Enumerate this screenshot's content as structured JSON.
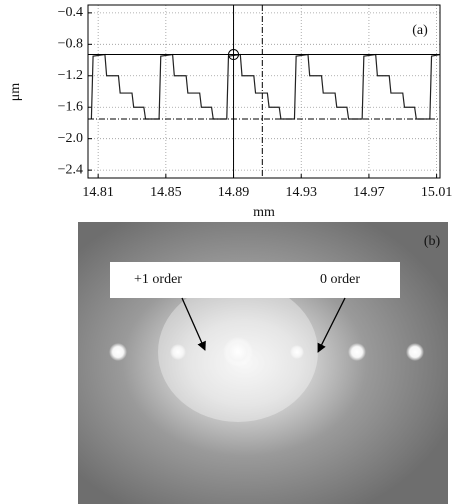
{
  "chart_data": {
    "type": "line",
    "panel_label": "(a)",
    "x_label": "mm",
    "y_label": "μm",
    "color": "#222222",
    "grid": true,
    "xlim": [
      14.804,
      15.012
    ],
    "ylim": [
      -2.5,
      -0.3
    ],
    "xticks": [
      14.81,
      14.85,
      14.89,
      14.93,
      14.97,
      15.01
    ],
    "yticks": [
      {
        "value": -0.4,
        "label": "−0.4"
      },
      {
        "value": -0.8,
        "label": "−0.8"
      },
      {
        "value": -1.2,
        "label": "−1.2"
      },
      {
        "value": -1.6,
        "label": "−1.6"
      },
      {
        "value": -2.0,
        "label": "−2.0"
      },
      {
        "value": -2.4,
        "label": "−2.4"
      }
    ],
    "x": [
      14.806,
      14.807,
      14.814,
      14.815,
      14.822,
      14.823,
      14.83,
      14.831,
      14.837,
      14.838,
      14.845,
      14.846,
      14.847,
      14.854,
      14.855,
      14.862,
      14.863,
      14.87,
      14.871,
      14.877,
      14.878,
      14.885,
      14.886,
      14.887,
      14.894,
      14.895,
      14.902,
      14.903,
      14.91,
      14.911,
      14.917,
      14.918,
      14.925,
      14.926,
      14.927,
      14.934,
      14.935,
      14.942,
      14.943,
      14.95,
      14.951,
      14.957,
      14.958,
      14.965,
      14.966,
      14.967,
      14.974,
      14.975,
      14.982,
      14.983,
      14.99,
      14.991,
      14.997,
      14.998,
      15.005,
      15.006,
      15.007,
      15.012
    ],
    "values": [
      -1.75,
      -0.95,
      -0.93,
      -1.2,
      -1.2,
      -1.42,
      -1.42,
      -1.6,
      -1.6,
      -1.75,
      -1.75,
      -1.75,
      -0.95,
      -0.93,
      -1.2,
      -1.2,
      -1.42,
      -1.42,
      -1.6,
      -1.6,
      -1.75,
      -1.75,
      -1.75,
      -0.95,
      -0.93,
      -1.2,
      -1.2,
      -1.42,
      -1.42,
      -1.6,
      -1.6,
      -1.75,
      -1.75,
      -1.75,
      -0.95,
      -0.93,
      -1.2,
      -1.2,
      -1.42,
      -1.42,
      -1.6,
      -1.6,
      -1.75,
      -1.75,
      -1.75,
      -0.95,
      -0.93,
      -1.2,
      -1.2,
      -1.42,
      -1.42,
      -1.6,
      -1.6,
      -1.75,
      -1.75,
      -1.75,
      -0.95,
      -0.93
    ],
    "cursors": {
      "x": [
        14.89,
        14.907
      ],
      "y": [
        -0.93,
        -1.75
      ]
    },
    "marker": {
      "x": 14.89,
      "y": -0.93
    }
  },
  "photo": {
    "panel_label": "(b)",
    "annotations": [
      "+1 order",
      "0 order"
    ]
  }
}
